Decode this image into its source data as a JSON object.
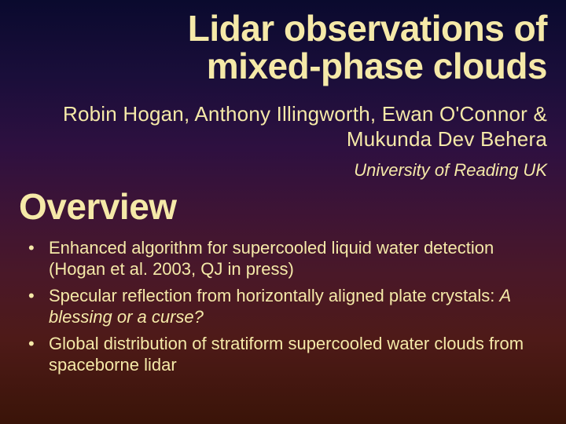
{
  "colors": {
    "text": "#f5e9a8",
    "bg_gradient_stops": [
      "#0a0a2e",
      "#1a0e3a",
      "#2e1040",
      "#3e1435",
      "#4a1828",
      "#4e1a18",
      "#3a1408"
    ]
  },
  "title": {
    "line1": "Lidar observations of",
    "line2": "mixed-phase clouds",
    "font_family": "Arial Narrow",
    "font_weight": 700,
    "font_size_pt": 34
  },
  "authors": {
    "text": "Robin Hogan, Anthony Illingworth, Ewan O'Connor & Mukunda Dev Behera",
    "font_size_pt": 20
  },
  "affiliation": {
    "text": "University of Reading UK",
    "font_style": "italic",
    "font_size_pt": 17
  },
  "section": {
    "label": "Overview",
    "font_family": "Arial Narrow",
    "font_weight": 700,
    "font_size_pt": 34
  },
  "bullets": [
    {
      "plain": "Enhanced algorithm for supercooled liquid water detection (Hogan et al. 2003, QJ in press)",
      "italic": ""
    },
    {
      "plain": "Specular reflection from horizontally aligned plate crystals: ",
      "italic": "A blessing or a curse?"
    },
    {
      "plain": "Global distribution of stratiform supercooled water clouds from spaceborne lidar",
      "italic": ""
    }
  ],
  "bullet_font_size_pt": 17
}
